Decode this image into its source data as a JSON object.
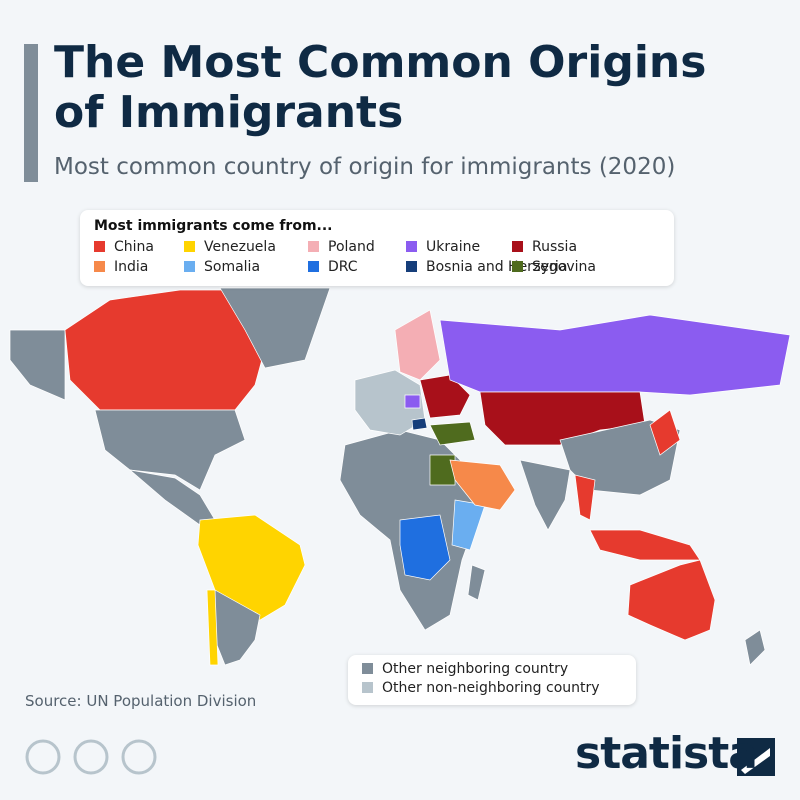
{
  "header": {
    "title": "The Most Common Origins of Immigrants",
    "subtitle": "Most common country of origin for immigrants (2020)"
  },
  "legend": {
    "title": "Most immigrants come from...",
    "items": [
      {
        "label": "China",
        "color": "#e63a2e"
      },
      {
        "label": "India",
        "color": "#f6894a"
      },
      {
        "label": "Venezuela",
        "color": "#ffd400"
      },
      {
        "label": "Somalia",
        "color": "#6aaef0"
      },
      {
        "label": "Poland",
        "color": "#f4aeb4"
      },
      {
        "label": "DRC",
        "color": "#1f6fe0"
      },
      {
        "label": "Ukraine",
        "color": "#8b5cf0"
      },
      {
        "label": "Bosnia and Herzegovina",
        "color": "#163e7a"
      },
      {
        "label": "Russia",
        "color": "#a8101a"
      },
      {
        "label": "Syria",
        "color": "#4f6b1e"
      }
    ]
  },
  "secondary_legend": {
    "items": [
      {
        "label": "Other neighboring country",
        "color": "#7f8d99"
      },
      {
        "label": "Other non-neighboring country",
        "color": "#b7c4cc"
      }
    ]
  },
  "source": "Source: UN Population Division",
  "brand": "statista"
}
